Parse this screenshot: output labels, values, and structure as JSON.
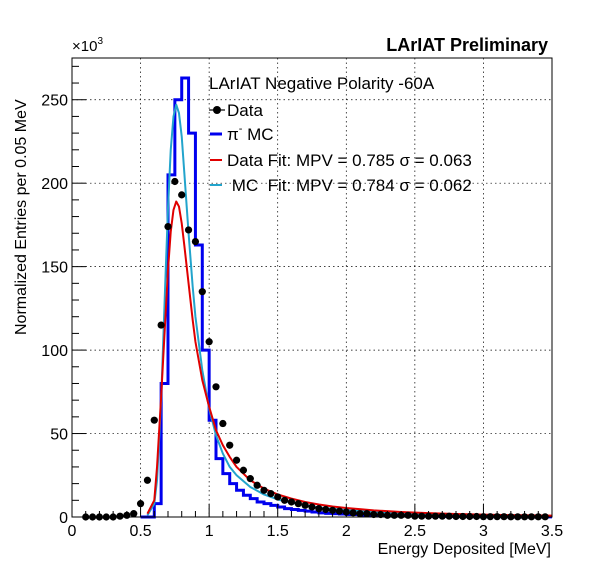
{
  "chart_data": {
    "type": "line",
    "title": "LArIAT Preliminary",
    "legend_header": "LArIAT Negative Polarity -60A",
    "xlabel": "Energy Deposited [MeV]",
    "ylabel": "Normalized Entries per 0.05 MeV",
    "y_multiplier": "×10",
    "y_multiplier_exp": "3",
    "xlim": [
      0,
      3.5
    ],
    "ylim": [
      0,
      275
    ],
    "grid": true,
    "legend_placement": "top-right",
    "x_ticks": [
      {
        "value": 0,
        "label": "0"
      },
      {
        "value": 0.5,
        "label": "0.5"
      },
      {
        "value": 1,
        "label": "1"
      },
      {
        "value": 1.5,
        "label": "1.5"
      },
      {
        "value": 2,
        "label": "2"
      },
      {
        "value": 2.5,
        "label": "2.5"
      },
      {
        "value": 3,
        "label": "3"
      },
      {
        "value": 3.5,
        "label": "3.5"
      }
    ],
    "y_ticks": [
      {
        "value": 0,
        "label": "0"
      },
      {
        "value": 50,
        "label": "50"
      },
      {
        "value": 100,
        "label": "100"
      },
      {
        "value": 150,
        "label": "150"
      },
      {
        "value": 200,
        "label": "200"
      },
      {
        "value": 250,
        "label": "250"
      }
    ],
    "series": [
      {
        "name": "Data",
        "kind": "points",
        "color": "#000000",
        "x": [
          0.1,
          0.15,
          0.2,
          0.25,
          0.3,
          0.35,
          0.4,
          0.45,
          0.5,
          0.55,
          0.6,
          0.65,
          0.7,
          0.75,
          0.8,
          0.85,
          0.9,
          0.95,
          1.0,
          1.05,
          1.1,
          1.15,
          1.2,
          1.25,
          1.3,
          1.35,
          1.4,
          1.45,
          1.5,
          1.55,
          1.6,
          1.65,
          1.7,
          1.75,
          1.8,
          1.85,
          1.9,
          1.95,
          2.0,
          2.05,
          2.1,
          2.15,
          2.2,
          2.25,
          2.3,
          2.35,
          2.4,
          2.45,
          2.5,
          2.55,
          2.6,
          2.65,
          2.7,
          2.75,
          2.8,
          2.85,
          2.9,
          2.95,
          3.0,
          3.05,
          3.1,
          3.15,
          3.2,
          3.25,
          3.3,
          3.35,
          3.4,
          3.45
        ],
        "y": [
          0,
          0,
          0,
          0,
          0,
          0.5,
          1,
          2,
          8,
          22,
          58,
          115,
          174,
          201,
          193,
          172,
          165,
          135,
          105,
          78,
          56,
          43,
          34,
          28,
          23,
          19,
          16,
          14,
          12,
          10,
          9,
          8,
          7,
          6,
          5,
          4.5,
          4,
          3.5,
          3,
          2.5,
          2,
          2,
          1.5,
          1.5,
          1,
          1,
          1,
          1,
          0.5,
          0.5,
          0.5,
          0.5,
          0.5,
          0.5,
          0.3,
          0.3,
          0.3,
          0.3,
          0.2,
          0.2,
          0.2,
          0.2,
          0.1,
          0.1,
          0.1,
          0.1,
          0.1,
          0.1
        ]
      },
      {
        "name": "π⁻ MC",
        "kind": "histogram",
        "color": "#0000ee",
        "bin_edges": [
          0.5,
          0.55,
          0.6,
          0.65,
          0.7,
          0.75,
          0.8,
          0.85,
          0.9,
          0.95,
          1.0,
          1.05,
          1.1,
          1.15,
          1.2,
          1.25,
          1.3,
          1.35,
          1.4,
          1.45,
          1.5,
          1.55,
          1.6,
          1.65,
          1.7,
          1.75,
          1.8,
          1.85,
          1.9,
          1.95,
          2.0,
          2.1,
          2.2,
          2.3,
          2.4,
          2.5,
          2.6,
          2.7,
          2.8,
          2.9,
          3.0,
          3.1,
          3.2,
          3.3,
          3.4,
          3.5
        ],
        "values": [
          0,
          0,
          8,
          80,
          205,
          250,
          263,
          230,
          163,
          100,
          58,
          35,
          26,
          20,
          16,
          13,
          11,
          9,
          8,
          7,
          6,
          5,
          4.5,
          4,
          3.5,
          3,
          2.5,
          2.2,
          2,
          1.8,
          1.5,
          1.2,
          1,
          0.8,
          0.6,
          0.5,
          0.4,
          0.3,
          0.3,
          0.2,
          0.2,
          0.15,
          0.1,
          0.1,
          0.1
        ]
      },
      {
        "name": "Data Fit: MPV = 0.785 σ = 0.063",
        "kind": "curve",
        "color": "#e00000",
        "x": [
          0.55,
          0.6,
          0.62,
          0.65,
          0.68,
          0.7,
          0.72,
          0.74,
          0.76,
          0.78,
          0.8,
          0.82,
          0.85,
          0.88,
          0.9,
          0.95,
          1.0,
          1.05,
          1.1,
          1.15,
          1.2,
          1.3,
          1.4,
          1.5,
          1.6,
          1.7,
          1.8,
          1.9,
          2.0,
          2.2,
          2.4,
          2.6,
          2.8,
          3.0,
          3.2,
          3.5
        ],
        "y": [
          2,
          10,
          30,
          72,
          118,
          148,
          171,
          184,
          189,
          186,
          176,
          162,
          140,
          118,
          105,
          82,
          66,
          52,
          43,
          36,
          30,
          22,
          17,
          13.5,
          11,
          9,
          7.5,
          6.3,
          5.4,
          4,
          3,
          2.3,
          1.8,
          1.4,
          1.1,
          0.8
        ]
      },
      {
        "name": " MC  Fit: MPV = 0.784 σ = 0.062",
        "kind": "curve",
        "color": "#22a4cc",
        "x": [
          0.55,
          0.6,
          0.62,
          0.65,
          0.68,
          0.7,
          0.72,
          0.74,
          0.76,
          0.78,
          0.8,
          0.82,
          0.85,
          0.88,
          0.9,
          0.95,
          1.0,
          1.05,
          1.1,
          1.15,
          1.2,
          1.3,
          1.4,
          1.5,
          1.6,
          1.7,
          1.8,
          1.9,
          2.0,
          2.2,
          2.4,
          2.6,
          2.8,
          3.0,
          3.2,
          3.5
        ],
        "y": [
          1,
          8,
          22,
          70,
          140,
          185,
          220,
          240,
          247,
          242,
          228,
          205,
          170,
          138,
          120,
          88,
          65,
          49,
          38,
          30,
          25,
          18,
          13.5,
          10.5,
          8.5,
          7,
          5.8,
          4.9,
          4.2,
          3,
          2.2,
          1.7,
          1.3,
          1,
          0.8,
          0.6
        ]
      }
    ]
  }
}
